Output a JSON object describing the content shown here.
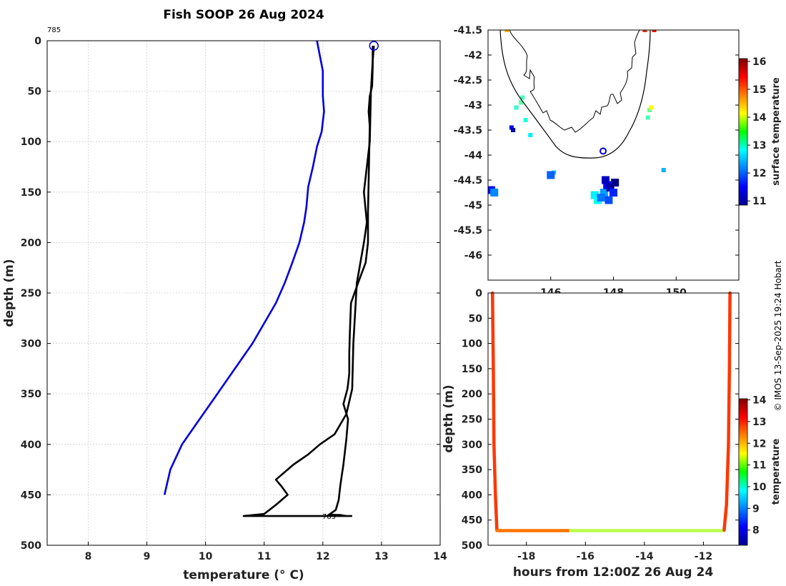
{
  "title": "Fish SOOP 26 Aug 2024",
  "credit": "© IMOS 13-Sep-2025 19:24 Hobart",
  "chart_data": [
    {
      "type": "line",
      "name": "temperature-profile",
      "xlabel": "temperature (° C)",
      "ylabel": "depth (m)",
      "xlim": [
        7.3,
        14
      ],
      "ylim": [
        0,
        500
      ],
      "xticks": [
        "8",
        "9",
        "10",
        "11",
        "12",
        "13",
        "14"
      ],
      "yticks": [
        "0",
        "50",
        "100",
        "150",
        "200",
        "250",
        "300",
        "350",
        "400",
        "450",
        "500"
      ],
      "annotations": [
        "785",
        "785"
      ],
      "series": [
        {
          "name": "climatology",
          "color": "#0000dd",
          "points": [
            [
              11.9,
              0
            ],
            [
              11.95,
              15
            ],
            [
              12.0,
              30
            ],
            [
              12.0,
              55
            ],
            [
              12.02,
              70
            ],
            [
              11.98,
              90
            ],
            [
              11.9,
              105
            ],
            [
              11.83,
              125
            ],
            [
              11.75,
              145
            ],
            [
              11.72,
              165
            ],
            [
              11.68,
              180
            ],
            [
              11.6,
              200
            ],
            [
              11.48,
              220
            ],
            [
              11.35,
              240
            ],
            [
              11.2,
              260
            ],
            [
              11.0,
              280
            ],
            [
              10.8,
              300
            ],
            [
              10.5,
              325
            ],
            [
              10.2,
              350
            ],
            [
              9.9,
              375
            ],
            [
              9.6,
              400
            ],
            [
              9.4,
              425
            ],
            [
              9.3,
              450
            ]
          ]
        },
        {
          "name": "profile-down",
          "color": "#000000",
          "points": [
            [
              12.85,
              5
            ],
            [
              12.85,
              25
            ],
            [
              12.84,
              45
            ],
            [
              12.8,
              55
            ],
            [
              12.78,
              70
            ],
            [
              12.8,
              85
            ],
            [
              12.79,
              110
            ],
            [
              12.78,
              140
            ],
            [
              12.77,
              170
            ],
            [
              12.77,
              200
            ],
            [
              12.73,
              220
            ],
            [
              12.6,
              240
            ],
            [
              12.48,
              260
            ],
            [
              12.46,
              290
            ],
            [
              12.45,
              310
            ],
            [
              12.45,
              330
            ],
            [
              12.42,
              345
            ],
            [
              12.35,
              360
            ],
            [
              12.43,
              375
            ],
            [
              12.4,
              395
            ],
            [
              12.35,
              420
            ],
            [
              12.3,
              440
            ],
            [
              12.27,
              455
            ],
            [
              12.22,
              465
            ],
            [
              12.1,
              470
            ],
            [
              12.3,
              470
            ],
            [
              12.4,
              471
            ]
          ]
        },
        {
          "name": "profile-up",
          "color": "#000000",
          "points": [
            [
              12.5,
              471
            ],
            [
              11.9,
              471
            ],
            [
              11.3,
              471
            ],
            [
              11.0,
              471
            ],
            [
              10.75,
              471
            ],
            [
              10.65,
              471
            ],
            [
              11.0,
              469
            ],
            [
              11.2,
              460
            ],
            [
              11.4,
              450
            ],
            [
              11.3,
              442
            ],
            [
              11.2,
              435
            ],
            [
              11.5,
              420
            ],
            [
              11.75,
              410
            ],
            [
              11.95,
              400
            ],
            [
              12.2,
              390
            ],
            [
              12.4,
              370
            ],
            [
              12.5,
              345
            ],
            [
              12.52,
              300
            ],
            [
              12.58,
              240
            ],
            [
              12.7,
              200
            ],
            [
              12.75,
              180
            ],
            [
              12.7,
              150
            ],
            [
              12.8,
              100
            ],
            [
              12.82,
              50
            ],
            [
              12.85,
              20
            ],
            [
              12.87,
              5
            ]
          ]
        }
      ]
    },
    {
      "type": "scatter",
      "name": "surface-temperature-map",
      "xlim": [
        144,
        152
      ],
      "ylim": [
        -46.5,
        -41.5
      ],
      "xticks": [
        "146",
        "148",
        "150"
      ],
      "yticks": [
        "-41.5",
        "-42",
        "-42.5",
        "-43",
        "-43.5",
        "-44",
        "-44.5",
        "-45",
        "-45.5",
        "-46"
      ],
      "colorbar_label": "surface temperature",
      "colorbar_range": [
        11,
        16
      ],
      "colorbar_ticks": [
        "11",
        "12",
        "13",
        "14",
        "15",
        "16"
      ],
      "marker": {
        "lon": 147.67,
        "lat": -43.92
      },
      "points": [
        [
          147.4,
          -44.8,
          12.8
        ],
        [
          147.5,
          -44.9,
          12.9
        ],
        [
          147.7,
          -44.75,
          12.4
        ],
        [
          147.8,
          -44.6,
          11.6
        ],
        [
          147.9,
          -44.65,
          11.2
        ],
        [
          147.75,
          -44.5,
          11.3
        ],
        [
          148.0,
          -44.75,
          11.8
        ],
        [
          147.6,
          -44.85,
          12.2
        ],
        [
          147.85,
          -44.9,
          12.0
        ],
        [
          148.05,
          -44.55,
          11.0
        ],
        [
          145.1,
          -42.85,
          13.2
        ],
        [
          145.05,
          -42.95,
          13.3
        ],
        [
          144.9,
          -43.05,
          13.1
        ],
        [
          144.75,
          -43.45,
          11.5
        ],
        [
          144.8,
          -43.5,
          11.2
        ],
        [
          145.2,
          -43.3,
          13.0
        ],
        [
          145.35,
          -43.6,
          12.8
        ],
        [
          144.1,
          -44.7,
          11.7
        ],
        [
          144.2,
          -44.75,
          12.3
        ],
        [
          146.1,
          -44.35,
          12.6
        ],
        [
          146.0,
          -44.4,
          12.1
        ],
        [
          149.15,
          -43.1,
          13.4
        ],
        [
          149.2,
          -43.05,
          14.1
        ],
        [
          149.1,
          -43.25,
          13.2
        ],
        [
          144.6,
          -41.5,
          14.5
        ],
        [
          149.0,
          -41.5,
          15.2
        ],
        [
          149.3,
          -41.5,
          15.3
        ],
        [
          149.6,
          -44.3,
          12.5
        ]
      ]
    },
    {
      "type": "scatter",
      "name": "depth-time-series",
      "xlabel": "hours from 12:00Z 26 Aug 24",
      "ylabel": "depth (m)",
      "xlim": [
        -19.3,
        -10.8
      ],
      "ylim": [
        0,
        500
      ],
      "xticks": [
        "-18",
        "-16",
        "-14",
        "-12"
      ],
      "yticks": [
        "0",
        "50",
        "100",
        "150",
        "200",
        "250",
        "300",
        "350",
        "400",
        "450",
        "500"
      ],
      "colorbar_label": "temperature",
      "colorbar_range": [
        7.3,
        14
      ],
      "colorbar_ticks": [
        "8",
        "9",
        "10",
        "11",
        "12",
        "13",
        "14"
      ],
      "segments": [
        {
          "points": [
            [
              -19.15,
              0
            ],
            [
              -19.12,
              150
            ],
            [
              -19.1,
              300
            ],
            [
              -19.05,
              400
            ],
            [
              -19.0,
              470
            ]
          ],
          "temperature": 12.8
        },
        {
          "points": [
            [
              -19.0,
              471
            ],
            [
              -16.5,
              471
            ]
          ],
          "temperature": 12.4
        },
        {
          "points": [
            [
              -16.5,
              471
            ],
            [
              -11.3,
              471
            ]
          ],
          "temperature": 11.0
        },
        {
          "points": [
            [
              -11.3,
              470
            ],
            [
              -11.22,
              420
            ],
            [
              -11.15,
              300
            ],
            [
              -11.12,
              150
            ],
            [
              -11.1,
              0
            ]
          ],
          "temperature": 12.8
        }
      ]
    }
  ]
}
